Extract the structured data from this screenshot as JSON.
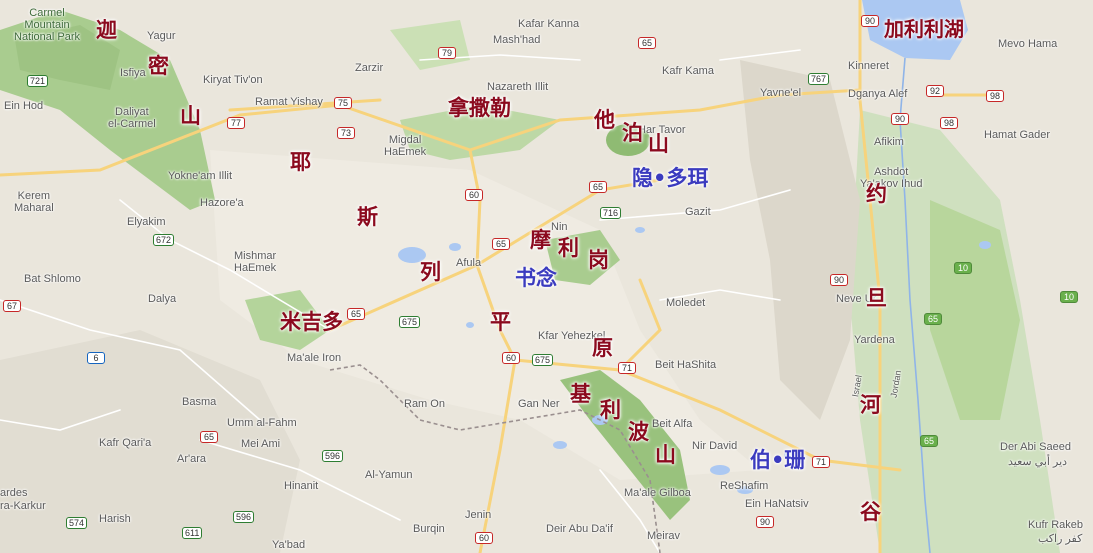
{
  "colors": {
    "land": "#eae6dc",
    "forest": "#a9cc8f",
    "water": "#abc8f2",
    "road_primary": "#f7d37c",
    "annotation_red": "#8b0a1e",
    "annotation_blue": "#3b3bbf"
  },
  "places": [
    {
      "id": "carmel",
      "text": "Carmel\nMountain\nNational Park"
    },
    {
      "id": "yagur",
      "text": "Yagur"
    },
    {
      "id": "isfiya",
      "text": "Isfiya"
    },
    {
      "id": "daliyat",
      "text": "Daliyat\nel-Carmel"
    },
    {
      "id": "ein_hod",
      "text": "Ein Hod"
    },
    {
      "id": "kiryat_tivon",
      "text": "Kiryat Tiv'on"
    },
    {
      "id": "ramat_yishay",
      "text": "Ramat Yishay"
    },
    {
      "id": "zarzir",
      "text": "Zarzir"
    },
    {
      "id": "kafar_kanna",
      "text": "Kafar Kanna"
    },
    {
      "id": "mashhad",
      "text": "Mash'had"
    },
    {
      "id": "nazareth",
      "text": "Nazareth Illit"
    },
    {
      "id": "kafr_kama",
      "text": "Kafr Kama"
    },
    {
      "id": "kinneret",
      "text": "Kinneret"
    },
    {
      "id": "mevo_hama",
      "text": "Mevo Hama"
    },
    {
      "id": "yavneel",
      "text": "Yavne'el"
    },
    {
      "id": "dganya",
      "text": "Dganya Alef"
    },
    {
      "id": "hamat_gader",
      "text": "Hamat Gader"
    },
    {
      "id": "migdal",
      "text": "Migdal\nHaEmek"
    },
    {
      "id": "har_tavor",
      "text": "Har Tavor"
    },
    {
      "id": "afikim",
      "text": "Afikim"
    },
    {
      "id": "ashdot",
      "text": "Ashdot\nYa'akov Ihud"
    },
    {
      "id": "kerem",
      "text": "Kerem\nMaharal"
    },
    {
      "id": "yokneam",
      "text": "Yokne'am Illit"
    },
    {
      "id": "hazorea",
      "text": "Hazore'a"
    },
    {
      "id": "elyakim",
      "text": "Elyakim"
    },
    {
      "id": "nin",
      "text": "Nin"
    },
    {
      "id": "gazit",
      "text": "Gazit"
    },
    {
      "id": "mishmar",
      "text": "Mishmar\nHaEmek"
    },
    {
      "id": "afula",
      "text": "Afula"
    },
    {
      "id": "bat_shlomo",
      "text": "Bat Shlomo"
    },
    {
      "id": "dalya",
      "text": "Dalya"
    },
    {
      "id": "moledet",
      "text": "Moledet"
    },
    {
      "id": "neve_ur",
      "text": "Neve Ur"
    },
    {
      "id": "kfar_yehezkel",
      "text": "Kfar Yehezkel"
    },
    {
      "id": "yardena",
      "text": "Yardena"
    },
    {
      "id": "maale_iron",
      "text": "Ma'ale Iron"
    },
    {
      "id": "beit_hashita",
      "text": "Beit HaShita"
    },
    {
      "id": "basma",
      "text": "Basma"
    },
    {
      "id": "ram_on",
      "text": "Ram On"
    },
    {
      "id": "gan_ner",
      "text": "Gan Ner"
    },
    {
      "id": "beit_alfa",
      "text": "Beit Alfa"
    },
    {
      "id": "umm_al_fahm",
      "text": "Umm al-Fahm"
    },
    {
      "id": "kafr_qara",
      "text": "Kafr Qari'a"
    },
    {
      "id": "mei_ami",
      "text": "Mei Ami"
    },
    {
      "id": "nir_david",
      "text": "Nir David"
    },
    {
      "id": "der_abi_saeed",
      "text": "Der Abi Saeed"
    },
    {
      "id": "der_abi_saeed_ar",
      "text": "دير أبي سعيد"
    },
    {
      "id": "arara",
      "text": "Ar'ara"
    },
    {
      "id": "al_yamun",
      "text": "Al-Yamun"
    },
    {
      "id": "reshafim",
      "text": "ReShafim"
    },
    {
      "id": "ein_hanatsiv",
      "text": "Ein HaNatsiv"
    },
    {
      "id": "hinanit",
      "text": "Hinanit"
    },
    {
      "id": "maale_gilboa",
      "text": "Ma'ale Gilboa"
    },
    {
      "id": "ardes",
      "text": "ardes"
    },
    {
      "id": "ara_karkur",
      "text": "ra-Karkur"
    },
    {
      "id": "harish",
      "text": "Harish"
    },
    {
      "id": "jenin",
      "text": "Jenin"
    },
    {
      "id": "burqin",
      "text": "Burqin"
    },
    {
      "id": "deir_abu_daif",
      "text": "Deir Abu Da'if"
    },
    {
      "id": "meirav",
      "text": "Meirav"
    },
    {
      "id": "kufr_rakeb",
      "text": "Kufr Rakeb"
    },
    {
      "id": "kufr_rakeb_ar",
      "text": "كفر راكب"
    },
    {
      "id": "yabad",
      "text": "Ya'bad"
    },
    {
      "id": "israel_river",
      "text": "Israel"
    },
    {
      "id": "jordan_river",
      "text": "Jordan"
    }
  ],
  "shields": [
    {
      "id": "r90a",
      "text": "90"
    },
    {
      "id": "r721",
      "text": "721"
    },
    {
      "id": "r79",
      "text": "79"
    },
    {
      "id": "r65a",
      "text": "65"
    },
    {
      "id": "r767",
      "text": "767"
    },
    {
      "id": "r75",
      "text": "75"
    },
    {
      "id": "r77",
      "text": "77"
    },
    {
      "id": "r73",
      "text": "73"
    },
    {
      "id": "r92",
      "text": "92"
    },
    {
      "id": "r98a",
      "text": "98"
    },
    {
      "id": "r90b",
      "text": "90"
    },
    {
      "id": "r98b",
      "text": "98"
    },
    {
      "id": "r60a",
      "text": "60"
    },
    {
      "id": "r65b",
      "text": "65"
    },
    {
      "id": "r716",
      "text": "716"
    },
    {
      "id": "r672",
      "text": "672"
    },
    {
      "id": "r65c",
      "text": "65"
    },
    {
      "id": "r67",
      "text": "67"
    },
    {
      "id": "r90c",
      "text": "90"
    },
    {
      "id": "r10a",
      "text": "10"
    },
    {
      "id": "r10b",
      "text": "10"
    },
    {
      "id": "r65d",
      "text": "65"
    },
    {
      "id": "r675a",
      "text": "675"
    },
    {
      "id": "r65e",
      "text": "65"
    },
    {
      "id": "r6",
      "text": "6"
    },
    {
      "id": "r60b",
      "text": "60"
    },
    {
      "id": "r675b",
      "text": "675"
    },
    {
      "id": "r71a",
      "text": "71"
    },
    {
      "id": "r65f",
      "text": "65"
    },
    {
      "id": "r596",
      "text": "596"
    },
    {
      "id": "r71b",
      "text": "71"
    },
    {
      "id": "r65g",
      "text": "65"
    },
    {
      "id": "r90d",
      "text": "90"
    },
    {
      "id": "r574",
      "text": "574"
    },
    {
      "id": "r611",
      "text": "611"
    },
    {
      "id": "r596b",
      "text": "596"
    },
    {
      "id": "r60c",
      "text": "60"
    }
  ],
  "annotations": [
    {
      "id": "carmel_1",
      "text": "迦"
    },
    {
      "id": "carmel_2",
      "text": "密"
    },
    {
      "id": "carmel_3",
      "text": "山"
    },
    {
      "id": "jez_1",
      "text": "耶"
    },
    {
      "id": "jez_2",
      "text": "斯"
    },
    {
      "id": "jez_3",
      "text": "列"
    },
    {
      "id": "jez_4",
      "text": "平"
    },
    {
      "id": "jez_5",
      "text": "原"
    },
    {
      "id": "nazareth",
      "text": "拿撒勒"
    },
    {
      "id": "tabor_1",
      "text": "他"
    },
    {
      "id": "tabor_2",
      "text": "泊"
    },
    {
      "id": "tabor_3",
      "text": "山"
    },
    {
      "id": "endor",
      "text": "隐•多珥"
    },
    {
      "id": "moreh_1",
      "text": "摩"
    },
    {
      "id": "moreh_2",
      "text": "利"
    },
    {
      "id": "moreh_3",
      "text": "岗"
    },
    {
      "id": "shunem",
      "text": "书念"
    },
    {
      "id": "megiddo",
      "text": "米吉多"
    },
    {
      "id": "gilboa_1",
      "text": "基"
    },
    {
      "id": "gilboa_2",
      "text": "利"
    },
    {
      "id": "gilboa_3",
      "text": "波"
    },
    {
      "id": "gilboa_4",
      "text": "山"
    },
    {
      "id": "bethshan",
      "text": "伯•珊"
    },
    {
      "id": "galilee",
      "text": "加利利湖"
    },
    {
      "id": "jv_1",
      "text": "约"
    },
    {
      "id": "jv_2",
      "text": "旦"
    },
    {
      "id": "jv_3",
      "text": "河"
    },
    {
      "id": "jv_4",
      "text": "谷"
    }
  ]
}
